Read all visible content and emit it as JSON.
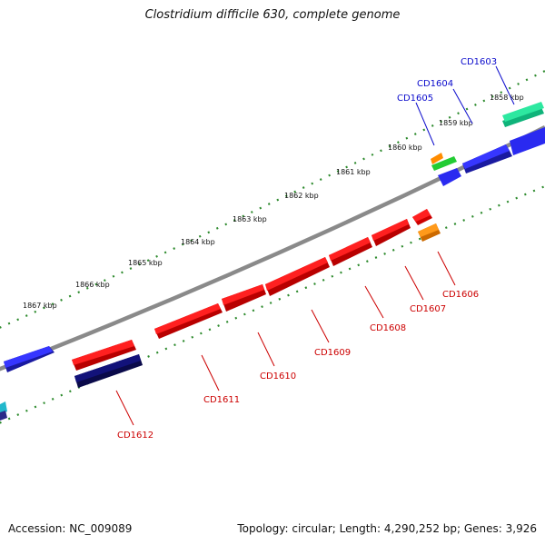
{
  "title": "Clostridium difficile 630, complete genome",
  "footer": {
    "accession": "Accession: NC_009089",
    "summary": "Topology: circular; Length: 4,290,252 bp; Genes: 3,926"
  },
  "colors": {
    "background": "#ffffff",
    "backbone": "#808080",
    "tick": "#2e8b2e",
    "forward_label": "#0a0acc",
    "reverse_label": "#cc0000"
  },
  "scale_labels": [
    "1858 kbp",
    "1859 kbp",
    "1860 kbp",
    "1861 kbp",
    "1862 kbp",
    "1863 kbp",
    "1864 kbp",
    "1865 kbp",
    "1866 kbp",
    "1867 kbp"
  ],
  "genes": [
    {
      "label": "CD1603",
      "strand": "forward",
      "color": "#2de8a0"
    },
    {
      "label": "CD1604",
      "strand": "forward",
      "color": "#2a2af0"
    },
    {
      "label": "CD1605",
      "strand": "forward",
      "color": "#2a2af0"
    },
    {
      "label": "CD1606",
      "strand": "reverse",
      "color": "#ff8c00"
    },
    {
      "label": "CD1607",
      "strand": "reverse",
      "color": "#ff1a1a"
    },
    {
      "label": "CD1608",
      "strand": "reverse",
      "color": "#ff1a1a"
    },
    {
      "label": "CD1609",
      "strand": "reverse",
      "color": "#ff1a1a"
    },
    {
      "label": "CD1610",
      "strand": "reverse",
      "color": "#ff1a1a"
    },
    {
      "label": "CD1611",
      "strand": "reverse",
      "color": "#ff1a1a"
    },
    {
      "label": "CD1612",
      "strand": "reverse",
      "color": "#12127a"
    }
  ]
}
